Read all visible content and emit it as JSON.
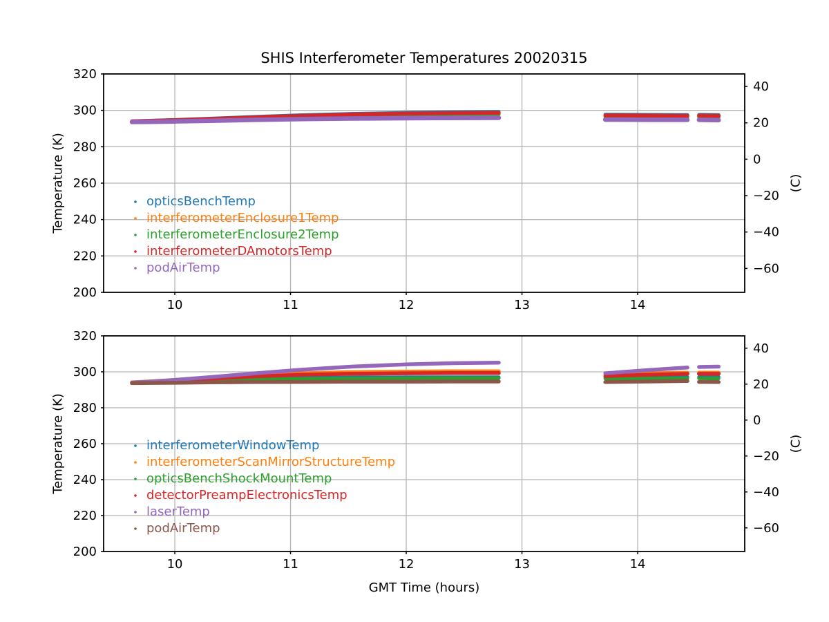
{
  "title": "SHIS Interferometer Temperatures 20020315",
  "axis_labels": {
    "x": "GMT Time (hours)",
    "y_left": "Temperature (K)",
    "y_right": "(C)"
  },
  "chart_data": [
    {
      "type": "scatter",
      "title": "SHIS Interferometer Temperatures 20020315",
      "xlabel": "",
      "ylabel_left": "Temperature (K)",
      "ylabel_right": "(C)",
      "xlim": [
        9.385,
        14.925
      ],
      "ylim": [
        200,
        320
      ],
      "xticks": [
        10,
        11,
        12,
        13,
        14
      ],
      "yticks": [
        200,
        220,
        240,
        260,
        280,
        300,
        320
      ],
      "right_ticks": [
        {
          "label": "40",
          "kelvin": 313.15
        },
        {
          "label": "20",
          "kelvin": 293.15
        },
        {
          "label": "0",
          "kelvin": 273.15
        },
        {
          "label": "−20",
          "kelvin": 253.15
        },
        {
          "label": "−40",
          "kelvin": 233.15
        },
        {
          "label": "−60",
          "kelvin": 213.15
        }
      ],
      "grid": true,
      "legend_position": "lower-left",
      "series": [
        {
          "name": "opticsBenchTemp",
          "color": "#1f77b4",
          "width": 5,
          "segments": [
            {
              "x": [
                9.63,
                9.8,
                10.0,
                10.3,
                10.7,
                11.1,
                11.5,
                12.0,
                12.4,
                12.8
              ],
              "y": [
                294.1,
                294.4,
                294.8,
                295.5,
                296.5,
                297.4,
                298.1,
                298.7,
                299.0,
                299.2
              ]
            },
            {
              "x": [
                13.72,
                14.1,
                14.43
              ],
              "y": [
                297.7,
                297.6,
                297.5
              ]
            },
            {
              "x": [
                14.53,
                14.7
              ],
              "y": [
                297.6,
                297.5
              ]
            }
          ]
        },
        {
          "name": "interferometerEnclosure1Temp",
          "color": "#ff7f0e",
          "width": 5,
          "segments": [
            {
              "x": [
                9.63,
                9.8,
                10.0,
                10.3,
                10.7,
                11.1,
                11.5,
                12.0,
                12.4,
                12.8
              ],
              "y": [
                293.8,
                294.0,
                294.3,
                294.8,
                295.6,
                296.3,
                296.8,
                297.2,
                297.4,
                297.5
              ]
            },
            {
              "x": [
                13.72,
                14.1,
                14.43
              ],
              "y": [
                296.2,
                296.1,
                296.1
              ]
            },
            {
              "x": [
                14.53,
                14.7
              ],
              "y": [
                296.1,
                296.0
              ]
            }
          ]
        },
        {
          "name": "interferometerEnclosure2Temp",
          "color": "#2ca02c",
          "width": 5,
          "segments": [
            {
              "x": [
                9.63,
                9.8,
                10.0,
                10.3,
                10.7,
                11.1,
                11.5,
                12.0,
                12.4,
                12.8
              ],
              "y": [
                293.9,
                294.1,
                294.4,
                295.0,
                295.9,
                296.7,
                297.3,
                297.8,
                298.0,
                298.1
              ]
            },
            {
              "x": [
                13.72,
                14.1,
                14.43
              ],
              "y": [
                296.7,
                296.6,
                296.6
              ]
            },
            {
              "x": [
                14.53,
                14.7
              ],
              "y": [
                296.6,
                296.5
              ]
            }
          ]
        },
        {
          "name": "interferometerDAmotorsTemp",
          "color": "#d62728",
          "width": 5.5,
          "segments": [
            {
              "x": [
                9.63,
                9.8,
                10.0,
                10.3,
                10.7,
                11.1,
                11.5,
                12.0,
                12.4,
                12.8
              ],
              "y": [
                294.0,
                294.2,
                294.6,
                295.2,
                296.2,
                297.0,
                297.7,
                298.2,
                298.5,
                298.7
              ]
            },
            {
              "x": [
                13.72,
                14.1,
                14.43
              ],
              "y": [
                297.2,
                297.1,
                297.0
              ]
            },
            {
              "x": [
                14.53,
                14.7
              ],
              "y": [
                297.1,
                297.0
              ]
            }
          ]
        },
        {
          "name": "podAirTemp",
          "color": "#9467bd",
          "width": 6.5,
          "segments": [
            {
              "x": [
                9.63,
                9.8,
                10.0,
                10.3,
                10.7,
                11.1,
                11.5,
                12.0,
                12.4,
                12.8
              ],
              "y": [
                293.6,
                293.7,
                293.9,
                294.3,
                294.8,
                295.2,
                295.5,
                295.7,
                295.8,
                295.9
              ]
            },
            {
              "x": [
                13.72,
                14.1,
                14.43
              ],
              "y": [
                294.9,
                294.8,
                294.8
              ]
            },
            {
              "x": [
                14.53,
                14.7
              ],
              "y": [
                294.8,
                294.6
              ]
            }
          ]
        }
      ]
    },
    {
      "type": "scatter",
      "title": "",
      "xlabel": "GMT Time (hours)",
      "ylabel_left": "Temperature (K)",
      "ylabel_right": "(C)",
      "xlim": [
        9.385,
        14.925
      ],
      "ylim": [
        200,
        320
      ],
      "xticks": [
        10,
        11,
        12,
        13,
        14
      ],
      "yticks": [
        200,
        220,
        240,
        260,
        280,
        300,
        320
      ],
      "right_ticks": [
        {
          "label": "40",
          "kelvin": 313.15
        },
        {
          "label": "20",
          "kelvin": 293.15
        },
        {
          "label": "0",
          "kelvin": 273.15
        },
        {
          "label": "−20",
          "kelvin": 253.15
        },
        {
          "label": "−40",
          "kelvin": 233.15
        },
        {
          "label": "−60",
          "kelvin": 213.15
        }
      ],
      "grid": true,
      "legend_position": "lower-left",
      "series": [
        {
          "name": "interferometerWindowTemp",
          "color": "#1f77b4",
          "width": 5,
          "segments": [
            {
              "x": [
                9.63,
                9.8,
                10.0,
                10.3,
                10.7,
                11.1,
                11.5,
                12.0,
                12.4,
                12.8
              ],
              "y": [
                294.0,
                294.3,
                294.7,
                295.4,
                296.1,
                296.6,
                296.9,
                297.0,
                297.0,
                297.0
              ]
            },
            {
              "x": [
                13.72,
                14.1,
                14.43
              ],
              "y": [
                296.9,
                297.0,
                297.1
              ]
            },
            {
              "x": [
                14.53,
                14.7
              ],
              "y": [
                297.1,
                297.1
              ]
            }
          ]
        },
        {
          "name": "interferometerScanMirrorStructureTemp",
          "color": "#ff7f0e",
          "width": 5.5,
          "segments": [
            {
              "x": [
                9.63,
                9.8,
                10.0,
                10.3,
                10.7,
                11.1,
                11.5,
                12.0,
                12.4,
                12.8
              ],
              "y": [
                294.1,
                294.7,
                295.5,
                296.8,
                298.2,
                299.2,
                299.8,
                300.1,
                300.3,
                300.3
              ]
            },
            {
              "x": [
                13.72,
                14.1,
                14.43
              ],
              "y": [
                298.8,
                299.2,
                299.5
              ]
            },
            {
              "x": [
                14.53,
                14.7
              ],
              "y": [
                299.5,
                299.5
              ]
            }
          ]
        },
        {
          "name": "opticsBenchShockMountTemp",
          "color": "#2ca02c",
          "width": 5,
          "segments": [
            {
              "x": [
                9.63,
                9.8,
                10.0,
                10.3,
                10.7,
                11.1,
                11.5,
                12.0,
                12.4,
                12.8
              ],
              "y": [
                293.9,
                294.2,
                294.5,
                295.1,
                295.7,
                296.1,
                296.3,
                296.4,
                296.5,
                296.5
              ]
            },
            {
              "x": [
                13.72,
                14.1,
                14.43
              ],
              "y": [
                296.2,
                296.3,
                296.4
              ]
            },
            {
              "x": [
                14.53,
                14.7
              ],
              "y": [
                296.4,
                296.3
              ]
            }
          ]
        },
        {
          "name": "detectorPreampElectronicsTemp",
          "color": "#d62728",
          "width": 5.5,
          "segments": [
            {
              "x": [
                9.63,
                9.8,
                10.0,
                10.3,
                10.7,
                11.1,
                11.5,
                12.0,
                12.4,
                12.8
              ],
              "y": [
                293.9,
                294.4,
                295.1,
                296.2,
                297.5,
                298.4,
                298.9,
                299.2,
                299.3,
                299.3
              ]
            },
            {
              "x": [
                13.72,
                14.1,
                14.43
              ],
              "y": [
                297.6,
                298.4,
                298.9
              ]
            },
            {
              "x": [
                14.53,
                14.7
              ],
              "y": [
                298.9,
                298.9
              ]
            }
          ]
        },
        {
          "name": "laserTemp",
          "color": "#9467bd",
          "width": 5.5,
          "segments": [
            {
              "x": [
                9.63,
                9.8,
                10.0,
                10.3,
                10.7,
                11.1,
                11.5,
                12.0,
                12.4,
                12.8
              ],
              "y": [
                294.0,
                294.6,
                295.5,
                297.0,
                299.2,
                301.2,
                302.8,
                304.1,
                304.8,
                305.1
              ]
            },
            {
              "x": [
                13.72,
                14.1,
                14.43
              ],
              "y": [
                299.2,
                301.0,
                302.4
              ]
            },
            {
              "x": [
                14.53,
                14.7
              ],
              "y": [
                302.7,
                302.9
              ]
            }
          ]
        },
        {
          "name": "podAirTemp",
          "color": "#8c564b",
          "width": 5.5,
          "segments": [
            {
              "x": [
                9.63,
                9.8,
                10.0,
                10.3,
                10.7,
                11.1,
                11.5,
                12.0,
                12.4,
                12.8
              ],
              "y": [
                293.7,
                293.8,
                293.9,
                294.1,
                294.3,
                294.4,
                294.5,
                294.5,
                294.6,
                294.6
              ]
            },
            {
              "x": [
                13.72,
                14.1,
                14.43
              ],
              "y": [
                294.3,
                294.6,
                294.9
              ]
            },
            {
              "x": [
                14.53,
                14.7
              ],
              "y": [
                294.4,
                294.3
              ]
            }
          ]
        }
      ]
    }
  ],
  "style": {
    "grid_color": "#b4b4b4",
    "spine_color": "#000000",
    "background": "#ffffff"
  }
}
